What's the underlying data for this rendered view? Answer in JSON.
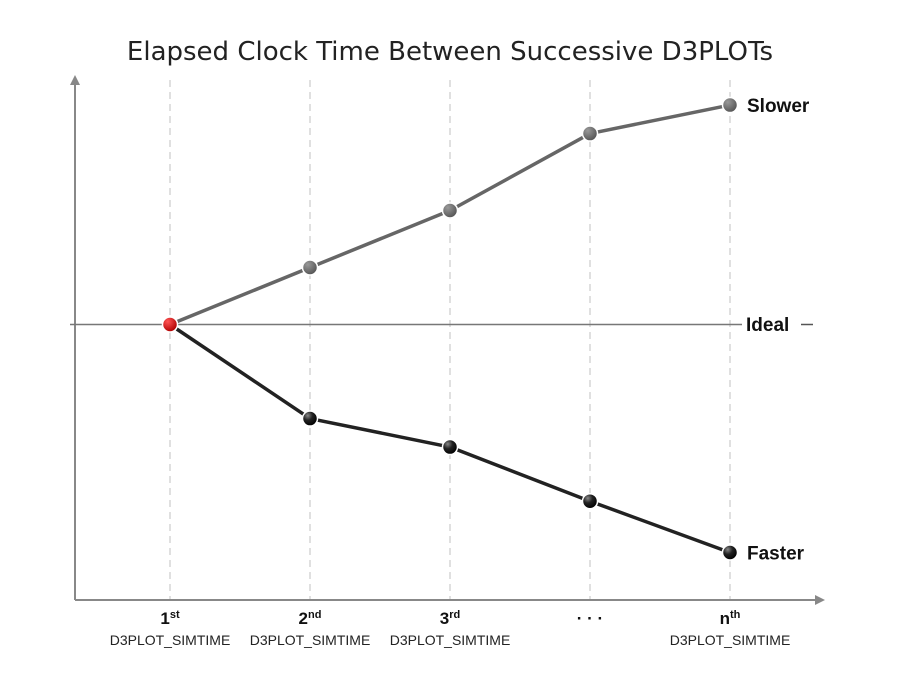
{
  "chart_data": {
    "type": "line",
    "title": "Elapsed Clock Time Between Successive D3PLOTs",
    "xlabel": "",
    "ylabel": "",
    "categories": [
      {
        "main": "1",
        "sup": "st",
        "sub": "D3PLOT_SIMTIME"
      },
      {
        "main": "2",
        "sup": "nd",
        "sub": "D3PLOT_SIMTIME"
      },
      {
        "main": "3",
        "sup": "rd",
        "sub": "D3PLOT_SIMTIME"
      },
      {
        "main": "· · ·",
        "sup": "",
        "sub": ""
      },
      {
        "main": "n",
        "sup": "th",
        "sub": "D3PLOT_SIMTIME"
      }
    ],
    "reference_line": {
      "label": "Ideal",
      "value": 0
    },
    "series": [
      {
        "name": "Slower",
        "color": "#666666",
        "values": [
          0,
          2,
          4,
          6.7,
          7.7
        ]
      },
      {
        "name": "Faster",
        "color": "#222222",
        "values": [
          0,
          -3.3,
          -4.3,
          -6.2,
          -8
        ]
      }
    ],
    "start_point_color": "#cc0000",
    "ylim": [
      -9.2,
      8.3
    ],
    "grid": "vertical-dashed",
    "colors": {
      "axis": "#888888",
      "grid": "#cccccc"
    }
  }
}
